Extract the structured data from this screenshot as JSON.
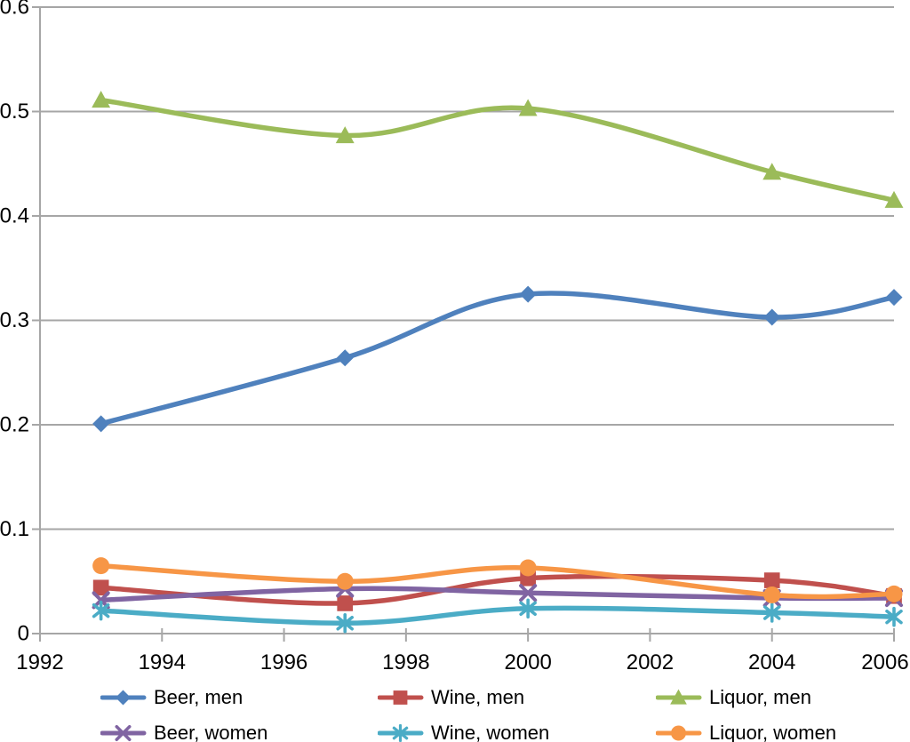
{
  "chart_data": {
    "type": "line",
    "title": "",
    "xlabel": "",
    "ylabel": "",
    "smooth_lines": true,
    "grid": "horizontal",
    "x": [
      1993,
      1997,
      2000,
      2004,
      2006
    ],
    "x_axis": {
      "min": 1992,
      "max": 2006,
      "tick_step": 2,
      "tick_labels": [
        "1992",
        "1994",
        "1996",
        "1998",
        "2000",
        "2002",
        "2004",
        "2006"
      ]
    },
    "y_axis": {
      "min": 0,
      "max": 0.6,
      "tick_step": 0.1,
      "tick_labels": [
        "0",
        "0.1",
        "0.2",
        "0.3",
        "0.4",
        "0.5",
        "0.6"
      ]
    },
    "series": [
      {
        "name": "Beer, men",
        "color": "#4F81BD",
        "marker": "diamond",
        "values": [
          0.201,
          0.264,
          0.325,
          0.303,
          0.322
        ]
      },
      {
        "name": "Wine, men",
        "color": "#C0504D",
        "marker": "square",
        "values": [
          0.044,
          0.029,
          0.053,
          0.051,
          0.036
        ]
      },
      {
        "name": "Liquor, men",
        "color": "#9BBB59",
        "marker": "triangle",
        "values": [
          0.511,
          0.477,
          0.503,
          0.442,
          0.415
        ]
      },
      {
        "name": "Beer, women",
        "color": "#8064A2",
        "marker": "x",
        "values": [
          0.032,
          0.043,
          0.039,
          0.034,
          0.034
        ]
      },
      {
        "name": "Wine, women",
        "color": "#4BACC6",
        "marker": "asterisk",
        "values": [
          0.022,
          0.01,
          0.024,
          0.02,
          0.016
        ]
      },
      {
        "name": "Liquor, women",
        "color": "#F79646",
        "marker": "circle",
        "values": [
          0.065,
          0.05,
          0.063,
          0.037,
          0.038
        ]
      }
    ],
    "legend": {
      "position": "bottom",
      "rows": 2,
      "columns": 3,
      "order": [
        "Beer, men",
        "Wine, men",
        "Liquor, men",
        "Beer, women",
        "Wine, women",
        "Liquor, women"
      ]
    }
  },
  "colors": {
    "gridline": "#A6A6A6",
    "axis": "#A6A6A6",
    "text": "#000000",
    "background": "#FFFFFF"
  }
}
